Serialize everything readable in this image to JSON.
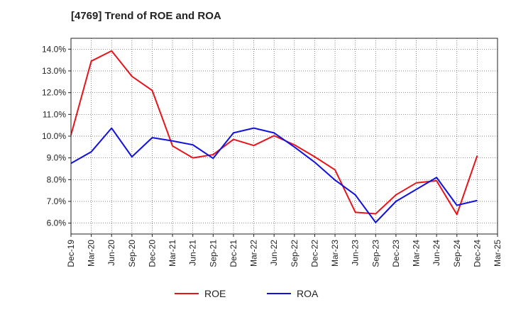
{
  "chart_data": {
    "type": "line",
    "title": "[4769]  Trend of ROE and ROA",
    "x_tick_labels": [
      "Dec-19",
      "Mar-20",
      "Jun-20",
      "Sep-20",
      "Dec-20",
      "Mar-21",
      "Jun-21",
      "Sep-21",
      "Dec-21",
      "Mar-22",
      "Jun-22",
      "Sep-22",
      "Dec-22",
      "Mar-23",
      "Jun-23",
      "Sep-23",
      "Dec-23",
      "Mar-24",
      "Jun-24",
      "Sep-24",
      "Dec-24",
      "Mar-25"
    ],
    "y_tick_labels": [
      "6.0%",
      "7.0%",
      "8.0%",
      "9.0%",
      "10.0%",
      "11.0%",
      "12.0%",
      "13.0%",
      "14.0%"
    ],
    "y_ticks": [
      6,
      7,
      8,
      9,
      10,
      11,
      12,
      13,
      14
    ],
    "ylim": [
      5.5,
      14.5
    ],
    "grid": true,
    "legend_position": "bottom-center",
    "x": [
      "Dec-19",
      "Mar-20",
      "Jun-20",
      "Sep-20",
      "Dec-20",
      "Mar-21",
      "Jun-21",
      "Sep-21",
      "Dec-21",
      "Mar-22",
      "Jun-22",
      "Sep-22",
      "Dec-22",
      "Mar-23",
      "Jun-23",
      "Sep-23",
      "Dec-23",
      "Mar-24",
      "Jun-24",
      "Sep-24",
      "Dec-24"
    ],
    "series": [
      {
        "name": "ROE",
        "color": "#e8141b",
        "values": [
          10.05,
          13.45,
          13.92,
          12.75,
          12.1,
          9.55,
          9.0,
          9.15,
          9.85,
          9.57,
          10.02,
          9.6,
          9.05,
          8.45,
          6.5,
          6.43,
          7.3,
          7.85,
          7.95,
          6.4,
          9.1
        ]
      },
      {
        "name": "ROA",
        "color": "#1212e0",
        "values": [
          8.75,
          9.28,
          10.37,
          9.05,
          9.93,
          9.78,
          9.6,
          8.98,
          10.15,
          10.37,
          10.15,
          9.5,
          8.8,
          7.98,
          7.3,
          6.03,
          7.0,
          7.55,
          8.1,
          6.82,
          7.04
        ]
      }
    ]
  }
}
